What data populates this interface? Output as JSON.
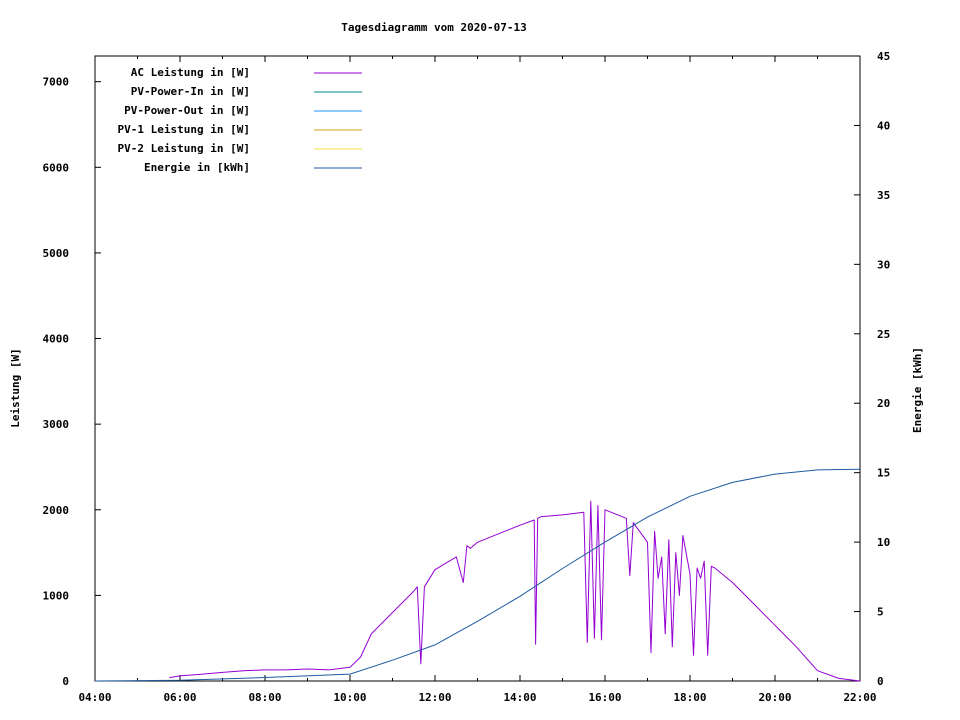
{
  "chart_data": {
    "type": "line",
    "title": "Tagesdiagramm vom 2020-07-13",
    "ylabel": "Leistung [W]",
    "y2label": "Energie [kWh]",
    "xlim": [
      "04:00",
      "22:00"
    ],
    "ylim": [
      0,
      7300
    ],
    "y2lim": [
      0,
      45
    ],
    "x_ticks": [
      "04:00",
      "06:00",
      "08:00",
      "10:00",
      "12:00",
      "14:00",
      "16:00",
      "18:00",
      "20:00",
      "22:00"
    ],
    "y_ticks": [
      "0",
      "1000",
      "2000",
      "3000",
      "4000",
      "5000",
      "6000",
      "7000"
    ],
    "y2_ticks": [
      "0",
      "5",
      "10",
      "15",
      "20",
      "25",
      "30",
      "35",
      "40",
      "45"
    ],
    "grid": false,
    "legend_position": "top-left",
    "series": [
      {
        "name": "AC Leistung in [W]",
        "color": "#9400d3",
        "axis": "left",
        "x": [
          "05:45",
          "06:00",
          "06:30",
          "07:00",
          "07:30",
          "08:00",
          "08:30",
          "09:00",
          "09:30",
          "10:00",
          "10:15",
          "10:30",
          "11:00",
          "11:30",
          "11:35",
          "11:40",
          "11:45",
          "12:00",
          "12:30",
          "12:40",
          "12:45",
          "12:50",
          "13:00",
          "13:30",
          "14:00",
          "14:20",
          "14:22",
          "14:25",
          "14:30",
          "15:00",
          "15:30",
          "15:35",
          "15:40",
          "15:45",
          "15:50",
          "15:55",
          "16:00",
          "16:30",
          "16:35",
          "16:40",
          "17:00",
          "17:05",
          "17:10",
          "17:15",
          "17:20",
          "17:25",
          "17:30",
          "17:35",
          "17:40",
          "17:45",
          "17:50",
          "18:00",
          "18:05",
          "18:10",
          "18:15",
          "18:20",
          "18:25",
          "18:30",
          "18:35",
          "19:00",
          "19:30",
          "20:00",
          "20:30",
          "21:00",
          "21:30",
          "22:00"
        ],
        "values": [
          40,
          60,
          80,
          100,
          120,
          130,
          130,
          140,
          130,
          160,
          280,
          550,
          800,
          1050,
          1100,
          200,
          1100,
          1300,
          1450,
          1150,
          1580,
          1550,
          1620,
          1720,
          1820,
          1880,
          430,
          1900,
          1920,
          1940,
          1970,
          450,
          2100,
          500,
          2050,
          480,
          2000,
          1900,
          1230,
          1850,
          1620,
          330,
          1750,
          1200,
          1450,
          550,
          1650,
          400,
          1500,
          1000,
          1700,
          1250,
          300,
          1320,
          1200,
          1400,
          300,
          1340,
          1320,
          1150,
          900,
          650,
          400,
          120,
          30,
          0
        ]
      },
      {
        "name": "PV-Power-In in [W]",
        "color": "#008b8b",
        "axis": "left",
        "x": [],
        "values": []
      },
      {
        "name": "PV-Power-Out in [W]",
        "color": "#1e90ff",
        "axis": "left",
        "x": [],
        "values": []
      },
      {
        "name": "PV-1 Leistung in [W]",
        "color": "#d4a017",
        "axis": "left",
        "x": [],
        "values": []
      },
      {
        "name": "PV-2 Leistung in [W]",
        "color": "#f0e040",
        "axis": "left",
        "x": [],
        "values": []
      },
      {
        "name": "Energie in [kWh]",
        "color": "#1e5aa0",
        "axis": "right",
        "x": [
          "04:00",
          "06:00",
          "08:00",
          "10:00",
          "11:00",
          "12:00",
          "13:00",
          "14:00",
          "15:00",
          "16:00",
          "17:00",
          "18:00",
          "19:00",
          "20:00",
          "21:00",
          "22:00"
        ],
        "values": [
          0,
          0.05,
          0.25,
          0.5,
          1.5,
          2.6,
          4.3,
          6.1,
          8.1,
          10,
          11.8,
          13.3,
          14.3,
          14.9,
          15.2,
          15.25
        ]
      }
    ]
  }
}
